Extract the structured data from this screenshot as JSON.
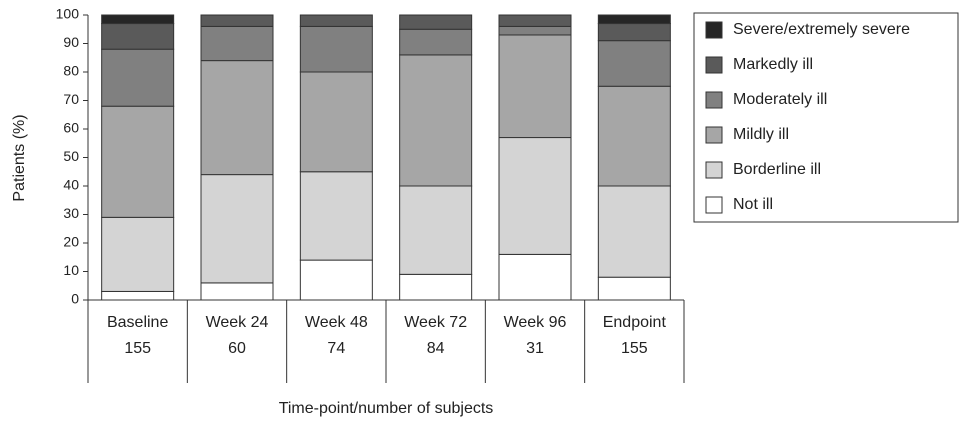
{
  "chart_data": {
    "type": "stacked_bar",
    "y_label": "Patients (%)",
    "x_label": "Time-point/number of subjects",
    "categories": [
      "Baseline",
      "Week 24",
      "Week 48",
      "Week 72",
      "Week 96",
      "Endpoint"
    ],
    "subject_counts": [
      155,
      60,
      74,
      84,
      31,
      155
    ],
    "series": [
      {
        "name": "Not ill",
        "color": "#ffffff",
        "values": [
          3,
          6,
          14,
          9,
          16,
          8
        ]
      },
      {
        "name": "Borderline ill",
        "color": "#d4d4d4",
        "values": [
          26,
          38,
          31,
          31,
          41,
          32
        ]
      },
      {
        "name": "Mildly ill",
        "color": "#a6a6a6",
        "values": [
          39,
          40,
          35,
          46,
          36,
          35
        ]
      },
      {
        "name": "Moderately ill",
        "color": "#808080",
        "values": [
          20,
          12,
          16,
          9,
          3,
          16
        ]
      },
      {
        "name": "Markedly ill",
        "color": "#5a5a5a",
        "values": [
          9,
          4,
          4,
          5,
          4,
          6
        ]
      },
      {
        "name": "Severe/extremely severe",
        "color": "#262626",
        "values": [
          3,
          0,
          0,
          0,
          0,
          3
        ]
      }
    ],
    "ylim": [
      0,
      100
    ],
    "yticks": [
      0,
      10,
      20,
      30,
      40,
      50,
      60,
      70,
      80,
      90,
      100
    ],
    "legend": "right"
  }
}
